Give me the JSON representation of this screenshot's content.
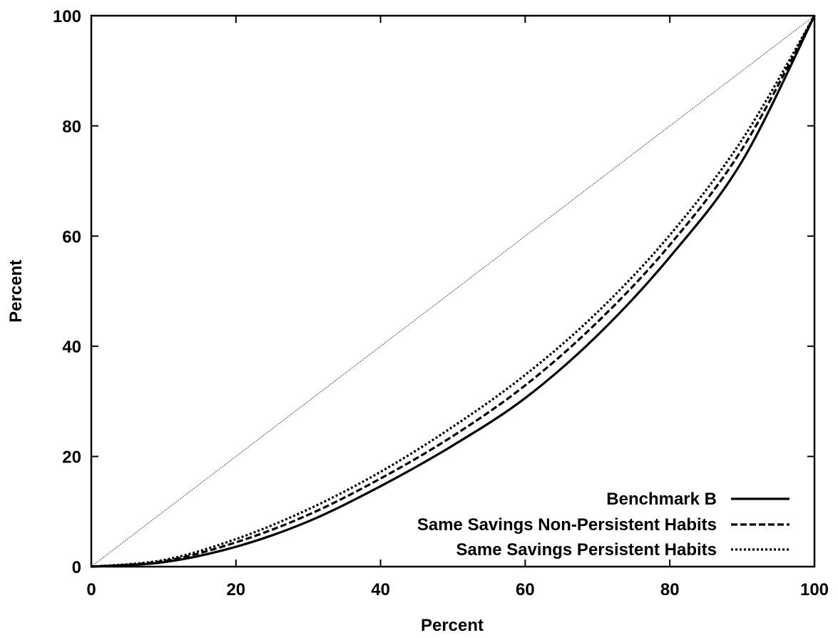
{
  "chart_data": {
    "type": "line",
    "xlabel": "Percent",
    "ylabel": "Percent",
    "xlim": [
      0,
      100
    ],
    "ylim": [
      0,
      100
    ],
    "xticks": [
      0,
      20,
      40,
      60,
      80,
      100
    ],
    "yticks": [
      0,
      20,
      40,
      60,
      80,
      100
    ],
    "grid": false,
    "legend_position": "bottom-right",
    "x": [
      0,
      10,
      20,
      30,
      40,
      50,
      60,
      70,
      80,
      90,
      100
    ],
    "reference_line": {
      "x": [
        0,
        100
      ],
      "y": [
        0,
        100
      ],
      "style": "dotted-thin"
    },
    "series": [
      {
        "name": "Benchmark B",
        "style": "solid",
        "values": [
          0,
          0.8,
          3.6,
          8.2,
          14.6,
          22.0,
          30.6,
          42.0,
          56.2,
          73.6,
          100
        ]
      },
      {
        "name": "Same  Savings Non-Persistent Habits",
        "style": "dashed",
        "values": [
          0,
          1.0,
          4.4,
          9.4,
          16.0,
          23.7,
          32.9,
          44.4,
          58.4,
          75.8,
          100
        ]
      },
      {
        "name": "Same  Savings Persistent Habits",
        "style": "dotted",
        "values": [
          0,
          1.2,
          5.0,
          10.4,
          17.2,
          25.4,
          34.8,
          46.2,
          60.2,
          77.5,
          100
        ]
      }
    ]
  }
}
